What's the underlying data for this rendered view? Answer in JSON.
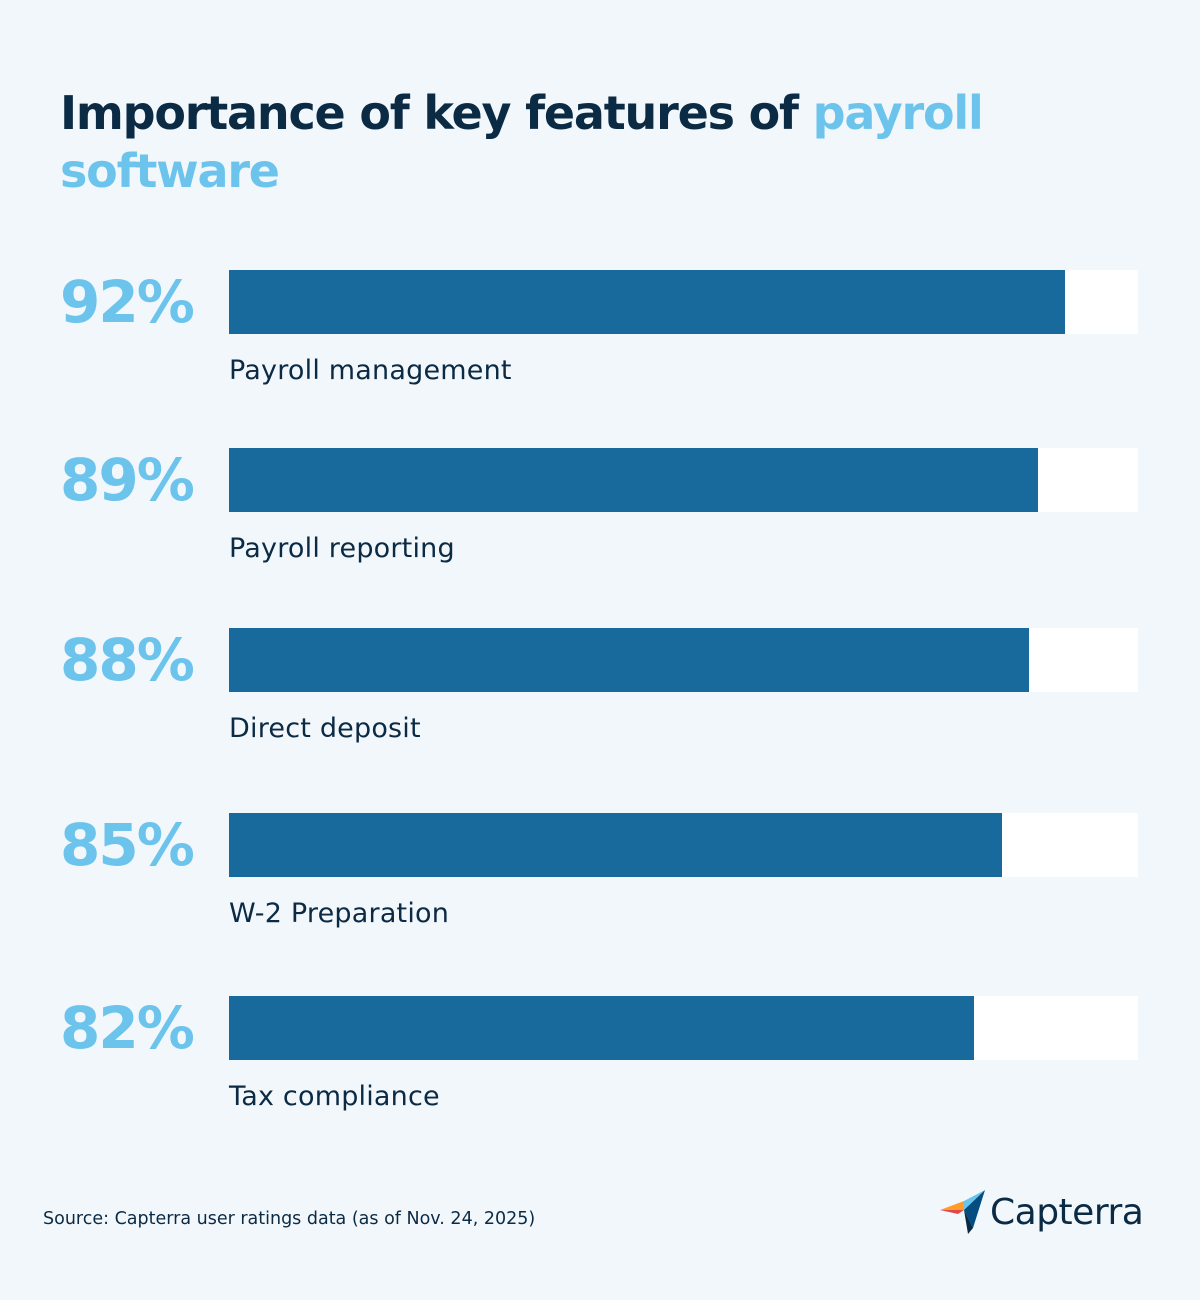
{
  "header": {
    "title_main": "Importance of key features of ",
    "title_highlight": "payroll software"
  },
  "chart_data": {
    "type": "bar",
    "orientation": "horizontal",
    "title": "Importance of key features of payroll software",
    "categories": [
      "Payroll management",
      "Payroll reporting",
      "Direct deposit",
      "W-2 Preparation",
      "Tax compliance"
    ],
    "values": [
      92,
      89,
      88,
      85,
      82
    ],
    "value_labels": [
      "92%",
      "89%",
      "88%",
      "85%",
      "82%"
    ],
    "xlim": [
      0,
      100
    ],
    "grid": false,
    "colors": {
      "bar": "#176a9b",
      "track": "#ffffff",
      "value_label": "#6cc4ed"
    }
  },
  "footer": {
    "source": "Source: Capterra user ratings data (as of Nov. 24, 2025)",
    "brand": "Capterra"
  },
  "colors": {
    "background": "#f2f7fc",
    "text_dark": "#0b2a44",
    "accent_light": "#6cc4ed",
    "bar": "#176a9b"
  },
  "icons": {
    "logo": "capterra-logo-icon"
  }
}
